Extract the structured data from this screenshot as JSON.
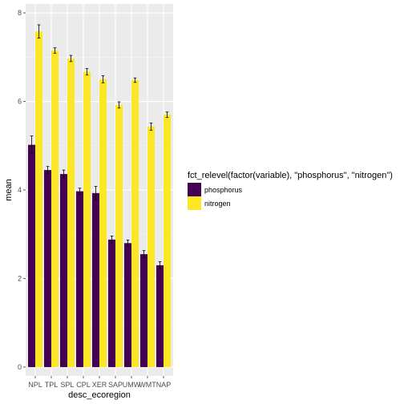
{
  "chart_data": {
    "type": "bar",
    "title": "",
    "xlabel": "desc_ecoregion",
    "ylabel": "mean",
    "ylim": [
      -0.2,
      8.2
    ],
    "yticks": [
      0,
      2,
      4,
      6,
      8
    ],
    "grid": true,
    "legend_position": "right",
    "legend_title": "fct_relevel(factor(variable), \"phosphorus\", \"nitrogen\")",
    "categories": [
      "NPL",
      "TPL",
      "SPL",
      "CPL",
      "XER",
      "SAP",
      "UMW",
      "WMT",
      "NAP"
    ],
    "series": [
      {
        "name": "phosphorus",
        "color": "#440154",
        "values": [
          5.02,
          4.45,
          4.36,
          3.97,
          3.93,
          2.88,
          2.8,
          2.55,
          2.3
        ],
        "err": [
          0.2,
          0.08,
          0.09,
          0.07,
          0.15,
          0.08,
          0.07,
          0.08,
          0.08
        ]
      },
      {
        "name": "nitrogen",
        "color": "#fde725",
        "values": [
          7.58,
          7.15,
          6.97,
          6.67,
          6.5,
          5.92,
          6.48,
          5.43,
          5.7
        ],
        "err": [
          0.15,
          0.06,
          0.07,
          0.07,
          0.08,
          0.07,
          0.05,
          0.08,
          0.06
        ]
      }
    ],
    "errorbar_color": "#000000"
  }
}
